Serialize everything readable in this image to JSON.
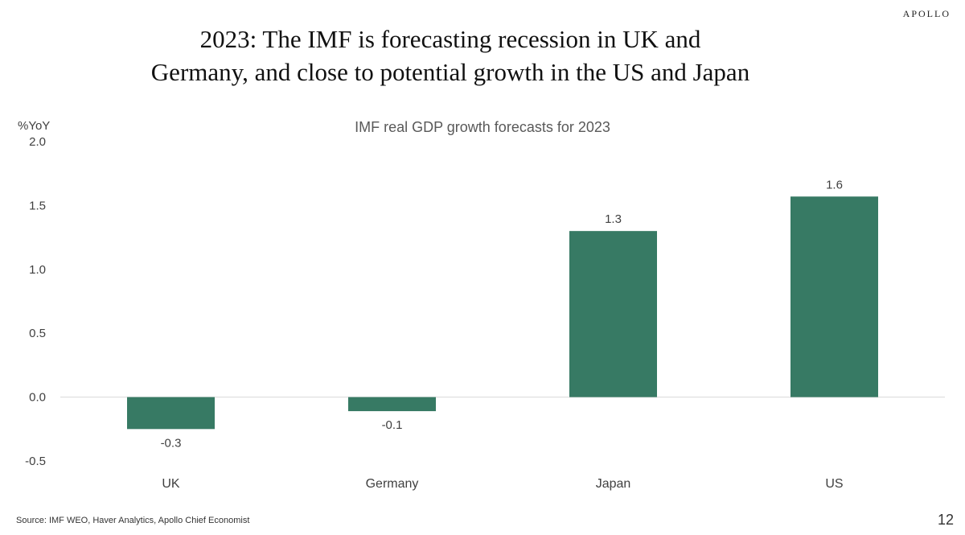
{
  "brand": "APOLLO",
  "slide_title_line1": "2023: The IMF is forecasting recession in UK and",
  "slide_title_line2": "Germany, and close to potential growth in the US and Japan",
  "footer": {
    "source": "Source: IMF WEO, Haver Analytics, Apollo Chief Economist",
    "page": "12"
  },
  "colors": {
    "bar": "#377a64",
    "axis": "#d9d9d9",
    "text": "#404040"
  },
  "chart_data": {
    "type": "bar",
    "title": "IMF real GDP growth forecasts for 2023",
    "ylabel": "%YoY",
    "xlabel": "",
    "categories": [
      "UK",
      "Germany",
      "Japan",
      "US"
    ],
    "values": [
      -0.25,
      -0.11,
      1.3,
      1.57
    ],
    "data_labels": [
      "-0.3",
      "-0.1",
      "1.3",
      "1.6"
    ],
    "ylim": [
      -0.5,
      2.0
    ],
    "yticks": [
      2.0,
      1.5,
      1.0,
      0.5,
      0.0,
      -0.5
    ],
    "ytick_labels": [
      "2.0",
      "1.5",
      "1.0",
      "0.5",
      "0.0",
      "-0.5"
    ],
    "grid": false,
    "legend": "none"
  }
}
